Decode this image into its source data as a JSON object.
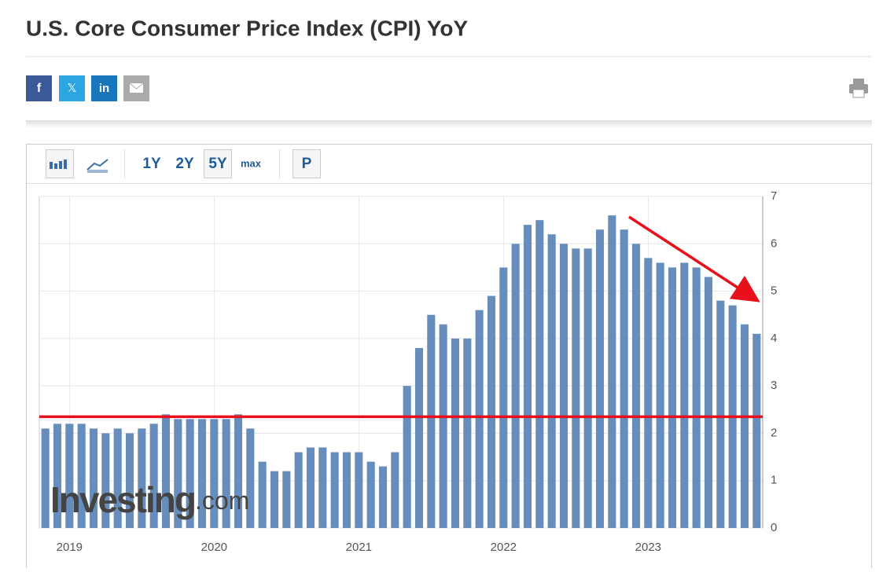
{
  "header": {
    "title": "U.S. Core Consumer Price Index (CPI) YoY",
    "share": [
      "f",
      "𝕏",
      "in"
    ]
  },
  "toolbar": {
    "ranges": [
      "1Y",
      "2Y",
      "5Y",
      "max"
    ],
    "p": "P"
  },
  "chart_data": {
    "type": "bar",
    "color": "#5f87b8",
    "categories": [
      null,
      null,
      "2019",
      null,
      null,
      null,
      null,
      null,
      null,
      null,
      null,
      null,
      null,
      null,
      "2020",
      null,
      null,
      null,
      null,
      null,
      null,
      null,
      null,
      null,
      null,
      null,
      "2021",
      null,
      null,
      null,
      null,
      null,
      null,
      null,
      null,
      null,
      null,
      null,
      "2022",
      null,
      null,
      null,
      null,
      null,
      null,
      null,
      null,
      null,
      null,
      null,
      "2023",
      null,
      null,
      null,
      null,
      null,
      null,
      null,
      null,
      null
    ],
    "values": [
      2.1,
      2.2,
      2.2,
      2.2,
      2.1,
      2.0,
      2.1,
      2.0,
      2.1,
      2.2,
      2.4,
      2.3,
      2.3,
      2.3,
      2.3,
      2.3,
      2.4,
      2.1,
      1.4,
      1.2,
      1.2,
      1.6,
      1.7,
      1.7,
      1.6,
      1.6,
      1.6,
      1.4,
      1.3,
      1.6,
      3.0,
      3.8,
      4.5,
      4.3,
      4.0,
      4.0,
      4.6,
      4.9,
      5.5,
      6.0,
      6.4,
      6.5,
      6.2,
      6.0,
      5.9,
      5.9,
      6.3,
      6.6,
      6.3,
      6.0,
      5.7,
      5.6,
      5.5,
      5.6,
      5.5,
      5.3,
      4.8,
      4.7,
      4.3,
      4.1
    ],
    "ylim": [
      0,
      7
    ],
    "yticks": [
      0,
      1,
      2,
      3,
      4,
      5,
      6,
      7
    ],
    "grid": true,
    "reference_line": {
      "value": 2.35,
      "color": "#e8101a"
    },
    "watermark": {
      "brand": "Investing",
      "suffix": ".com"
    }
  }
}
